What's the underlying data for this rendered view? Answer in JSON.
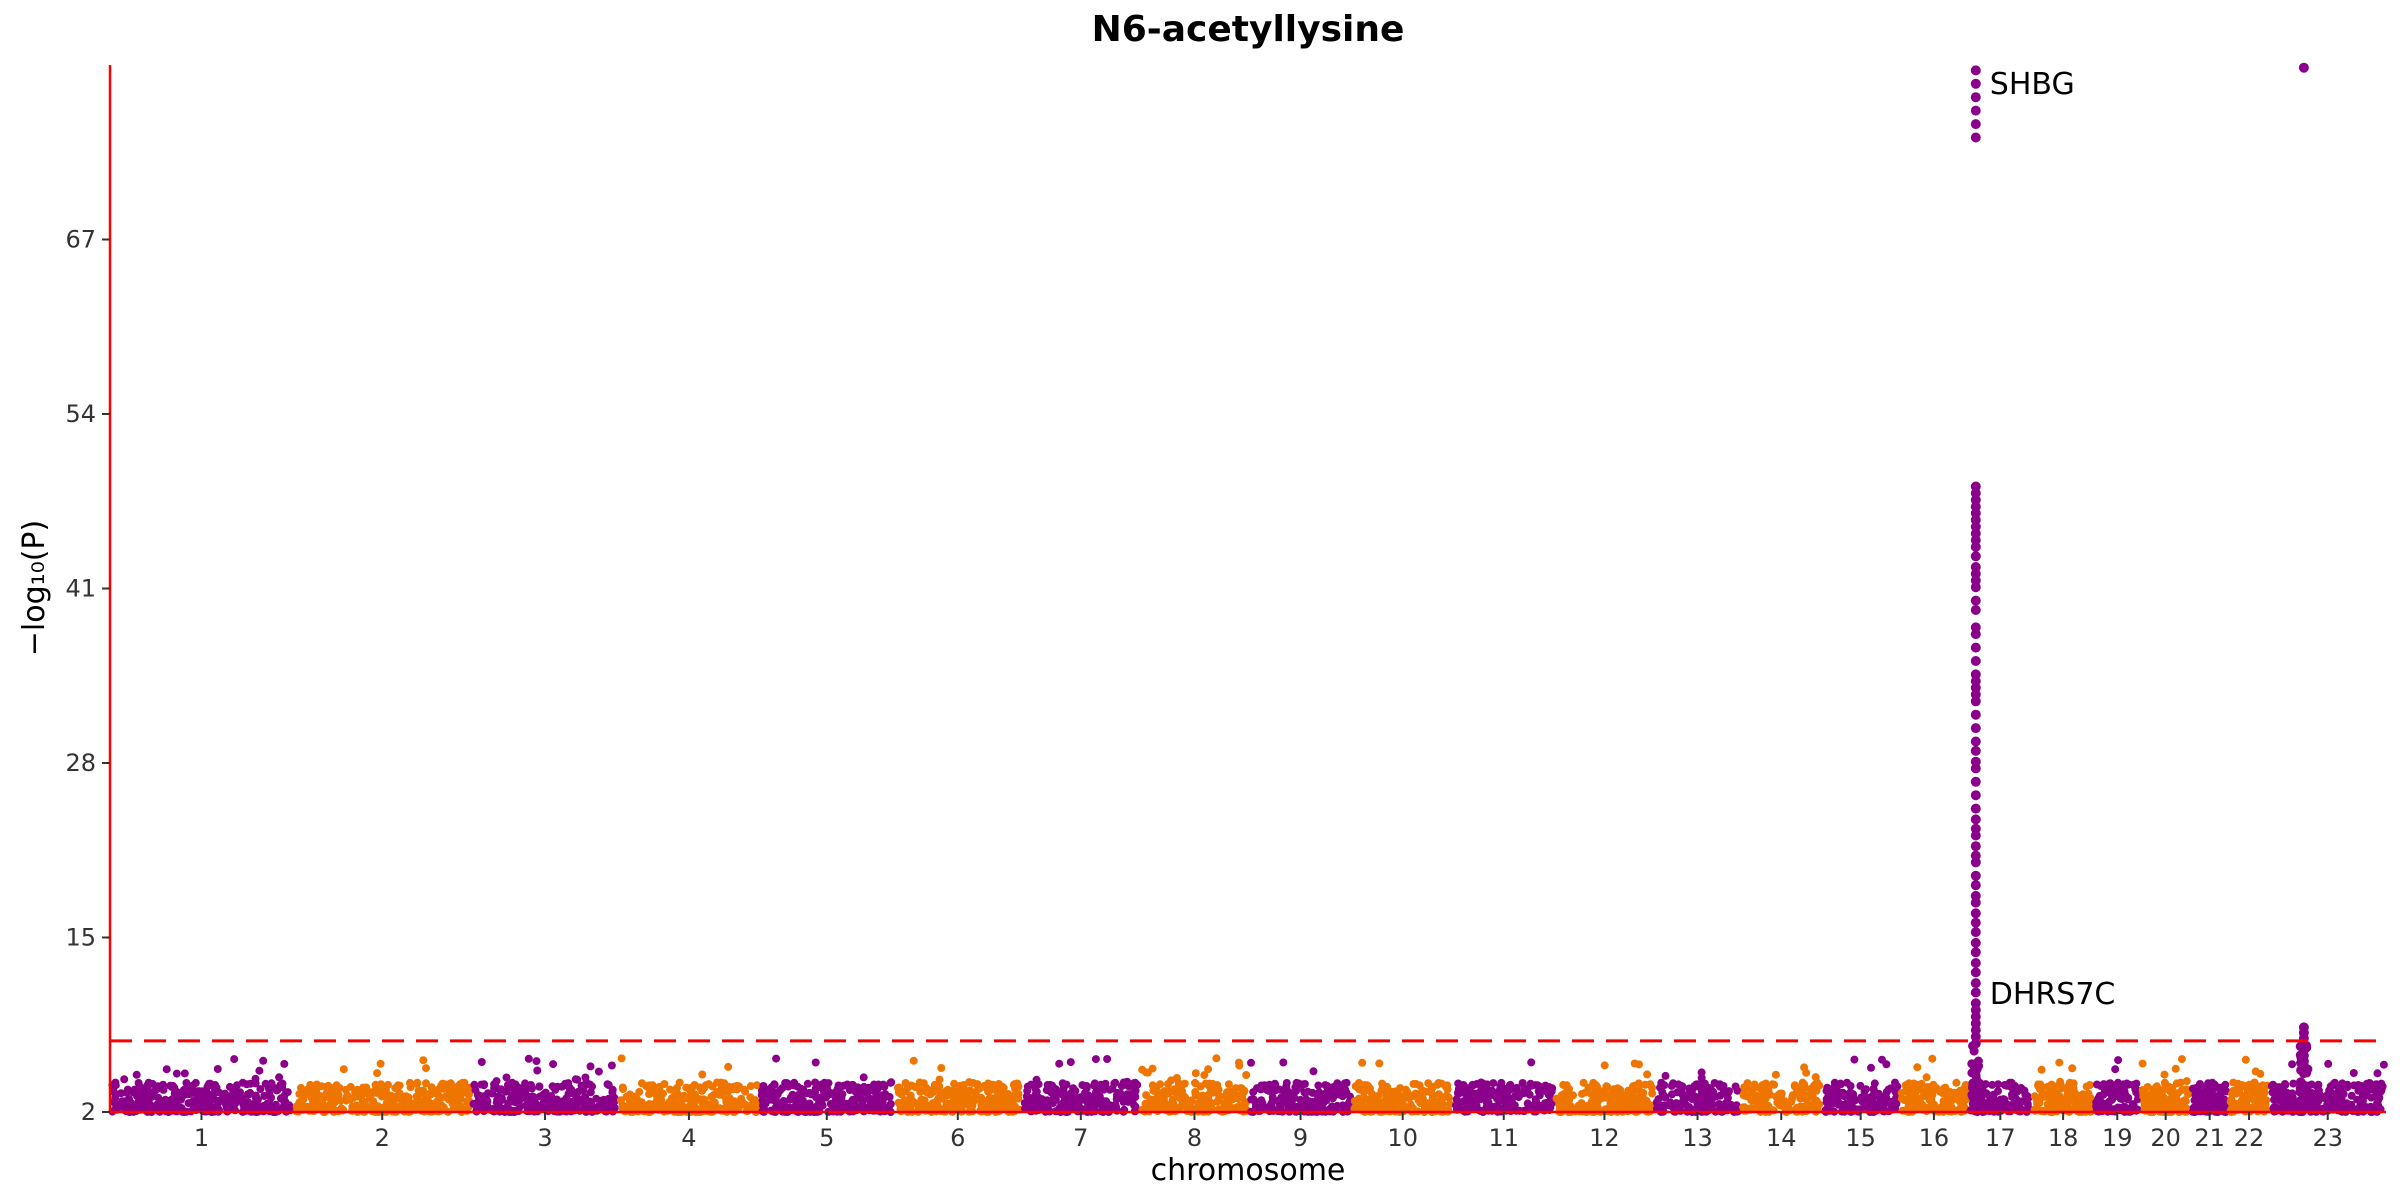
{
  "chart_data": {
    "type": "scatter",
    "title": "N6-acetyllysine",
    "xlabel": "chromosome",
    "ylabel": "−log₁₀(P)",
    "ylim": [
      2,
      80
    ],
    "yticks": [
      2,
      15,
      28,
      41,
      54,
      67
    ],
    "significance_threshold": 7.3,
    "colors": {
      "odd": "#8B008B",
      "even": "#EE7600",
      "axis": "#FF0000",
      "threshold": "#FF0000"
    },
    "chromosomes": [
      {
        "label": "1",
        "length": 248
      },
      {
        "label": "2",
        "length": 242
      },
      {
        "label": "3",
        "length": 198
      },
      {
        "label": "4",
        "length": 190
      },
      {
        "label": "5",
        "length": 181
      },
      {
        "label": "6",
        "length": 171
      },
      {
        "label": "7",
        "length": 159
      },
      {
        "label": "8",
        "length": 145
      },
      {
        "label": "9",
        "length": 138
      },
      {
        "label": "10",
        "length": 134
      },
      {
        "label": "11",
        "length": 135
      },
      {
        "label": "12",
        "length": 133
      },
      {
        "label": "13",
        "length": 114
      },
      {
        "label": "14",
        "length": 107
      },
      {
        "label": "15",
        "length": 102
      },
      {
        "label": "16",
        "length": 90
      },
      {
        "label": "17",
        "length": 83
      },
      {
        "label": "18",
        "length": 80
      },
      {
        "label": "19",
        "length": 59
      },
      {
        "label": "20",
        "length": 64
      },
      {
        "label": "21",
        "length": 47
      },
      {
        "label": "22",
        "length": 51
      },
      {
        "label": "23",
        "length": 156
      }
    ],
    "peaks": [
      {
        "chrom": "17",
        "pos": 7.5,
        "values": [
          79.6,
          78.6,
          77.6,
          76.6,
          75.6,
          74.6,
          48.6,
          48.1,
          47.6,
          47.1,
          46.6,
          46.1,
          45.6,
          45.1,
          44.6,
          44.1,
          43.4,
          42.6,
          42.1,
          41.6,
          41.1,
          40.1,
          39.4,
          38.1,
          37.6,
          36.6,
          35.6,
          34.6,
          34.1,
          33.6,
          33.1,
          32.6,
          31.6,
          30.6,
          29.6,
          28.9,
          28.1,
          27.6,
          26.6,
          25.6,
          24.6,
          23.8,
          23.1,
          22.6,
          21.8,
          21.1,
          20.6,
          19.6,
          18.9,
          18.1,
          17.6,
          16.8,
          16.1,
          15.4,
          14.6,
          13.9,
          13.1,
          12.4,
          11.6,
          10.9,
          10.1,
          9.6,
          9.1,
          8.6,
          8.1,
          7.6,
          7.1
        ]
      },
      {
        "chrom": "23",
        "pos": 45,
        "values": [
          79.8,
          8.3,
          7.9,
          7.5,
          7.1,
          6.6,
          6.2,
          5.8,
          5.3,
          4.9
        ]
      }
    ],
    "annotations": [
      {
        "text": "SHBG",
        "chrom": "17",
        "pos": 7.5,
        "y": 78.6
      },
      {
        "text": "DHRS7C",
        "chrom": "17",
        "pos": 7.5,
        "y": 10.8
      }
    ]
  }
}
